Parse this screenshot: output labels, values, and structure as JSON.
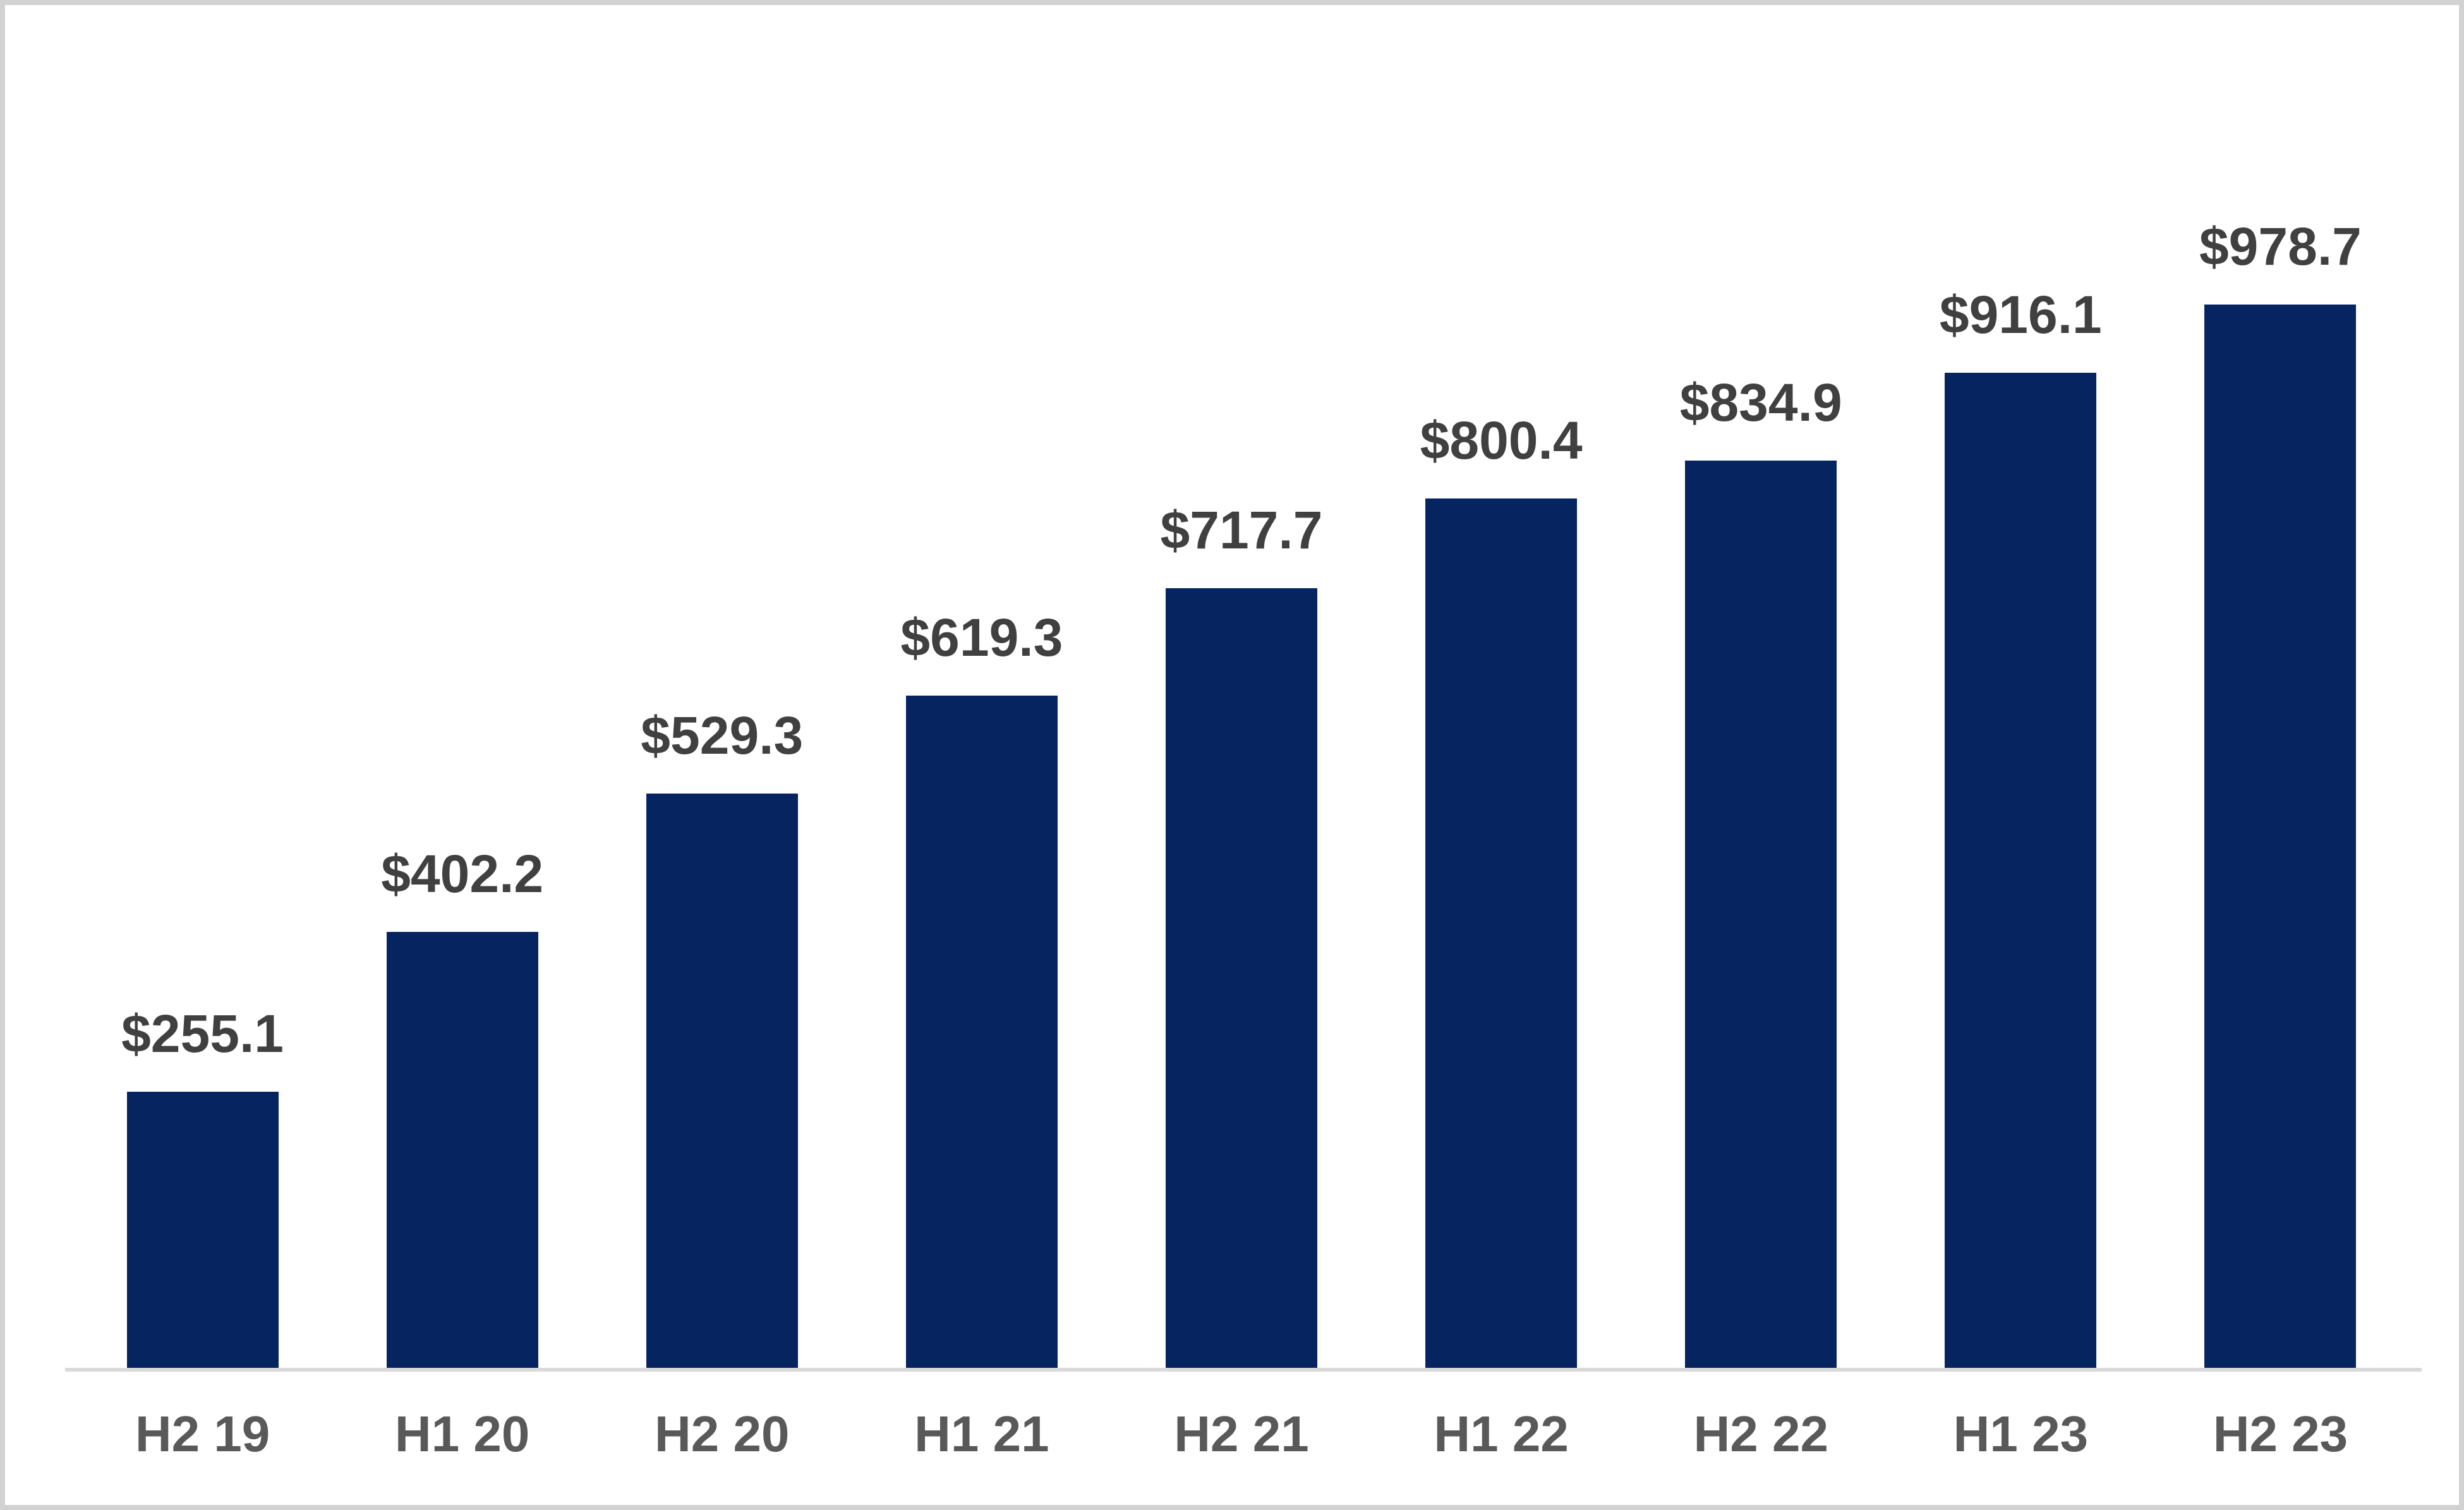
{
  "chart_data": {
    "type": "bar",
    "categories": [
      "H2 19",
      "H1 20",
      "H2 20",
      "H1 21",
      "H2 21",
      "H1 22",
      "H2 22",
      "H1 23",
      "H2 23"
    ],
    "values": [
      255.1,
      402.2,
      529.3,
      619.3,
      717.7,
      800.4,
      834.9,
      916.1,
      978.7
    ],
    "value_labels": [
      "$255.1",
      "$402.2",
      "$529.3",
      "$619.3",
      "$717.7",
      "$800.4",
      "$834.9",
      "$916.1",
      "$978.7"
    ],
    "title": "",
    "xlabel": "",
    "ylabel": "",
    "ylim": [
      0,
      1000
    ],
    "grid": false,
    "legend_position": "none",
    "bar_color": "#052460",
    "value_label_color": "#404040",
    "axis_label_color": "#595959",
    "axis_line_color": "#d9d9d9",
    "frame_border_color": "#d2d2d2",
    "background_color": "#ffffff"
  }
}
